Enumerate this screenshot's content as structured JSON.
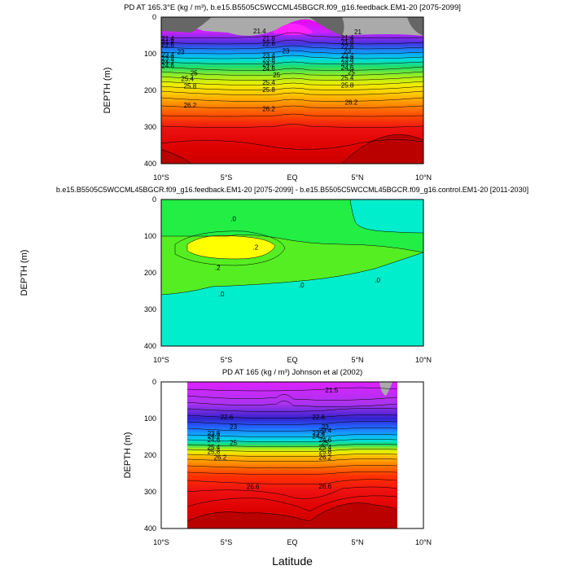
{
  "page": {
    "xlabel": "Latitude"
  },
  "chart_data": [
    {
      "type": "contour",
      "title": "PD AT 165.3°E (kg / m³), b.e15.B5505C5WCCML45BGCR.f09_g16.feedback.EM1-20 [2075-2099]",
      "title_text": "PD AT 165.3°E (kg / m³), b.e15.B5505C5WCCML45BGCR.f09_g16.feedback.EM1-20 [2075-2099]",
      "xlabel": "",
      "ylabel": "DEPTH (m)",
      "xlim": [
        -10,
        10
      ],
      "ylim": [
        400,
        0
      ],
      "xticks": [
        "10°S",
        "5°S",
        "EQ",
        "5°N",
        "10°N"
      ],
      "yticks": [
        0,
        100,
        200,
        300,
        400
      ],
      "contour_labels": [
        {
          "label": "21.4",
          "lat": -9.5,
          "depth": 58
        },
        {
          "label": "21.8",
          "lat": -9.5,
          "depth": 68
        },
        {
          "label": "22.6",
          "lat": -9.5,
          "depth": 76
        },
        {
          "label": "23",
          "lat": -8.5,
          "depth": 94
        },
        {
          "label": "23.4",
          "lat": -9.5,
          "depth": 102
        },
        {
          "label": "23.8",
          "lat": -9.5,
          "depth": 112
        },
        {
          "label": "24.2",
          "lat": -9.5,
          "depth": 122
        },
        {
          "label": "24.6",
          "lat": -9.5,
          "depth": 132
        },
        {
          "label": "25",
          "lat": -7.5,
          "depth": 152
        },
        {
          "label": "25.4",
          "lat": -8,
          "depth": 168
        },
        {
          "label": "25.8",
          "lat": -7.8,
          "depth": 188
        },
        {
          "label": "26.2",
          "lat": -7.8,
          "depth": 240
        },
        {
          "label": "21.4",
          "lat": -2.5,
          "depth": 38
        },
        {
          "label": "21.8",
          "lat": -1.8,
          "depth": 58
        },
        {
          "label": "22.6",
          "lat": -1.8,
          "depth": 72
        },
        {
          "label": "23",
          "lat": -0.5,
          "depth": 92
        },
        {
          "label": "23.4",
          "lat": -1.8,
          "depth": 104
        },
        {
          "label": "23.8",
          "lat": -1.8,
          "depth": 116
        },
        {
          "label": "24.2",
          "lat": -1.8,
          "depth": 128
        },
        {
          "label": "24.6",
          "lat": -1.8,
          "depth": 140
        },
        {
          "label": "25",
          "lat": -1.2,
          "depth": 158
        },
        {
          "label": "25.4",
          "lat": -1.8,
          "depth": 178
        },
        {
          "label": "25.8",
          "lat": -1.8,
          "depth": 198
        },
        {
          "label": "26.2",
          "lat": -1.8,
          "depth": 250
        },
        {
          "label": "21",
          "lat": 5,
          "depth": 40
        },
        {
          "label": "21.4",
          "lat": 4.2,
          "depth": 56
        },
        {
          "label": "21.8",
          "lat": 4.2,
          "depth": 68
        },
        {
          "label": "22.6",
          "lat": 4.2,
          "depth": 80
        },
        {
          "label": "23",
          "lat": 4.2,
          "depth": 92
        },
        {
          "label": "23.4",
          "lat": 4.2,
          "depth": 104
        },
        {
          "label": "23.8",
          "lat": 4.2,
          "depth": 114
        },
        {
          "label": "24.2",
          "lat": 4.2,
          "depth": 126
        },
        {
          "label": "24.6",
          "lat": 4.2,
          "depth": 138
        },
        {
          "label": "25",
          "lat": 4.5,
          "depth": 150
        },
        {
          "label": "25.4",
          "lat": 4.2,
          "depth": 166
        },
        {
          "label": "25.8",
          "lat": 4.2,
          "depth": 186
        },
        {
          "label": "26.2",
          "lat": 4.5,
          "depth": 232
        }
      ]
    },
    {
      "type": "contour",
      "title": "b.e15.B5505C5WCCML45BGCR.f09_g16.feedback.EM1-20 [2075-2099] - b.e15.B5505C5WCCML45BGCR.f09_g16.control.EM1-20 [2011-2030]",
      "xlabel": "",
      "ylabel": "DEPTH (m)",
      "xlim": [
        -10,
        10
      ],
      "ylim": [
        400,
        0
      ],
      "xticks": [
        "10°S",
        "5°S",
        "EQ",
        "5°N",
        "10°N"
      ],
      "yticks": [
        0,
        100,
        200,
        300,
        400
      ],
      "contour_labels": [
        {
          "label": ".0",
          "lat": -4.5,
          "depth": 52
        },
        {
          "label": ".2",
          "lat": -2.8,
          "depth": 130
        },
        {
          "label": ".2",
          "lat": -5.7,
          "depth": 185
        },
        {
          "label": ".0",
          "lat": -5.4,
          "depth": 258
        },
        {
          "label": ".0",
          "lat": 0.7,
          "depth": 233
        },
        {
          "label": ".0",
          "lat": 6.5,
          "depth": 220
        }
      ]
    },
    {
      "type": "contour",
      "title": "PD AT 165 (kg / m³) Johnson et al (2002)",
      "title_text": "PD AT 165 (kg / m³) Johnson et al (2002)",
      "xlabel": "",
      "ylabel": "DEPTH (m)",
      "xlim": [
        -10,
        10
      ],
      "ylim": [
        400,
        0
      ],
      "data_lat_range": [
        -8,
        8
      ],
      "xticks": [
        "10°S",
        "5°S",
        "EQ",
        "5°N",
        "10°N"
      ],
      "yticks": [
        0,
        100,
        200,
        300,
        400
      ],
      "contour_labels": [
        {
          "label": "21.5",
          "lat": 3,
          "depth": 22
        },
        {
          "label": "22.6",
          "lat": -5,
          "depth": 96
        },
        {
          "label": "22.6",
          "lat": 2,
          "depth": 96
        },
        {
          "label": "23",
          "lat": -4.5,
          "depth": 122
        },
        {
          "label": "23",
          "lat": 2.5,
          "depth": 122
        },
        {
          "label": "23.4",
          "lat": 2.5,
          "depth": 132
        },
        {
          "label": "23.8",
          "lat": -6,
          "depth": 140
        },
        {
          "label": "23.8",
          "lat": 2,
          "depth": 140
        },
        {
          "label": "24.2",
          "lat": -6,
          "depth": 148
        },
        {
          "label": "24.2",
          "lat": 2,
          "depth": 148
        },
        {
          "label": "24.6",
          "lat": -6,
          "depth": 158
        },
        {
          "label": "24.6",
          "lat": 2.5,
          "depth": 158
        },
        {
          "label": "25",
          "lat": -4.5,
          "depth": 166
        },
        {
          "label": "25",
          "lat": 2.5,
          "depth": 166
        },
        {
          "label": "25.4",
          "lat": -6,
          "depth": 178
        },
        {
          "label": "25.4",
          "lat": 2.5,
          "depth": 178
        },
        {
          "label": "25.8",
          "lat": -6,
          "depth": 190
        },
        {
          "label": "25.8",
          "lat": 2.5,
          "depth": 190
        },
        {
          "label": "26.2",
          "lat": -5.5,
          "depth": 206
        },
        {
          "label": "26.2",
          "lat": 2.5,
          "depth": 206
        },
        {
          "label": "26.6",
          "lat": -3,
          "depth": 286
        },
        {
          "label": "26.6",
          "lat": 2.5,
          "depth": 284
        }
      ]
    }
  ]
}
